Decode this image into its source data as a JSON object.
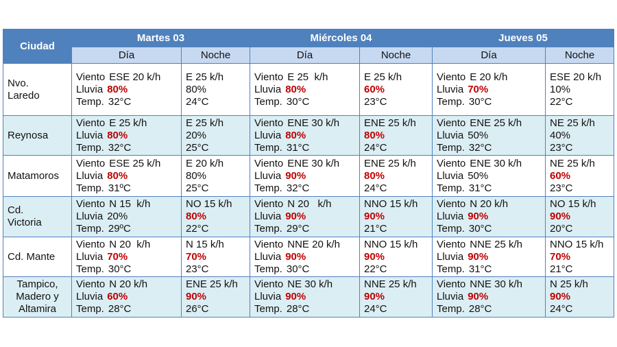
{
  "table": {
    "city_header": "Ciudad",
    "days": [
      "Martes 03",
      "Miércoles 04",
      "Jueves 05"
    ],
    "day_label": "Día",
    "night_label": "Noche",
    "day_labels": [
      "Viento",
      "Lluvia",
      "Temp."
    ],
    "rows": [
      {
        "city": [
          "Nvo.",
          "Laredo"
        ],
        "cells": [
          {
            "wind": "ESE 20 k/h",
            "rain": "80%",
            "rain_alert": true,
            "temp": "32°C"
          },
          {
            "wind": "E 25 k/h",
            "rain": "80%",
            "rain_alert": false,
            "temp": "24°C"
          },
          {
            "wind": "E 25  k/h",
            "rain": "80%",
            "rain_alert": true,
            "temp": "30°C"
          },
          {
            "wind": "E 25 k/h",
            "rain": "60%",
            "rain_alert": true,
            "temp": "23°C"
          },
          {
            "wind": "E 20 k/h",
            "rain": "70%",
            "rain_alert": true,
            "temp": "30°C"
          },
          {
            "wind": "ESE 20 k/h",
            "rain": "10%",
            "rain_alert": false,
            "temp": "22°C"
          }
        ]
      },
      {
        "city": [
          "Reynosa"
        ],
        "cells": [
          {
            "wind": "E 25 k/h",
            "rain": "80%",
            "rain_alert": true,
            "temp": "32°C"
          },
          {
            "wind": "E 25 k/h",
            "rain": "20%",
            "rain_alert": false,
            "temp": "25°C"
          },
          {
            "wind": "ENE 30 k/h",
            "rain": "80%",
            "rain_alert": true,
            "temp": "31°C"
          },
          {
            "wind": "ENE 25 k/h",
            "rain": "80%",
            "rain_alert": true,
            "temp": "24°C"
          },
          {
            "wind": "ENE 25 k/h",
            "rain": "50%",
            "rain_alert": false,
            "temp": "32°C"
          },
          {
            "wind": "NE 25 k/h",
            "rain": "40%",
            "rain_alert": false,
            "temp": "23°C"
          }
        ]
      },
      {
        "city": [
          "Matamoros"
        ],
        "cells": [
          {
            "wind": "ESE 25 k/h",
            "rain": "80%",
            "rain_alert": true,
            "temp": "31ºC"
          },
          {
            "wind": "E 20 k/h",
            "rain": "80%",
            "rain_alert": false,
            "temp": "25°C"
          },
          {
            "wind": "ENE 30 k/h",
            "rain": "90%",
            "rain_alert": true,
            "temp": "32°C"
          },
          {
            "wind": "ENE 25 k/h",
            "rain": "80%",
            "rain_alert": true,
            "temp": "24°C"
          },
          {
            "wind": "ENE 30 k/h",
            "rain": "50%",
            "rain_alert": false,
            "temp": "31°C"
          },
          {
            "wind": "NE 25 k/h",
            "rain": "60%",
            "rain_alert": true,
            "temp": "23°C"
          }
        ]
      },
      {
        "city": [
          "Cd.",
          "Victoria"
        ],
        "cells": [
          {
            "wind": "N 15  k/h",
            "rain": "20%",
            "rain_alert": false,
            "temp": "29ºC"
          },
          {
            "wind": "NO 15 k/h",
            "rain": "80%",
            "rain_alert": true,
            "temp": "22°C"
          },
          {
            "wind": "N 20   k/h",
            "rain": "90%",
            "rain_alert": true,
            "temp": "29°C"
          },
          {
            "wind": "NNO 15 k/h",
            "rain": "90%",
            "rain_alert": true,
            "temp": "21°C"
          },
          {
            "wind": "N 20 k/h",
            "rain": "90%",
            "rain_alert": true,
            "temp": "30°C"
          },
          {
            "wind": "NO 15 k/h",
            "rain": "90%",
            "rain_alert": true,
            "temp": "20°C"
          }
        ]
      },
      {
        "city": [
          "Cd. Mante"
        ],
        "cells": [
          {
            "wind": "N 20  k/h",
            "rain": "70%",
            "rain_alert": true,
            "temp": "30°C"
          },
          {
            "wind": "N 15 k/h",
            "rain": "70%",
            "rain_alert": true,
            "temp": "23°C"
          },
          {
            "wind": "NNE 20 k/h",
            "rain": "90%",
            "rain_alert": true,
            "temp": "30°C"
          },
          {
            "wind": "NNO 15 k/h",
            "rain": "90%",
            "rain_alert": true,
            "temp": "22°C"
          },
          {
            "wind": "NNE 25 k/h",
            "rain": "90%",
            "rain_alert": true,
            "temp": "31°C"
          },
          {
            "wind": "NNO 15 k/h",
            "rain": "70%",
            "rain_alert": true,
            "temp": "21°C"
          }
        ]
      },
      {
        "city": [
          "Tampico,",
          "Madero y",
          "Altamira"
        ],
        "cells": [
          {
            "wind": "N 20 k/h",
            "rain": "60%",
            "rain_alert": true,
            "temp": "28°C"
          },
          {
            "wind": "ENE 25 k/h",
            "rain": "90%",
            "rain_alert": true,
            "temp": "26°C"
          },
          {
            "wind": "NE 30 k/h",
            "rain": "90%",
            "rain_alert": true,
            "temp": "28°C"
          },
          {
            "wind": "NNE 25 k/h",
            "rain": "90%",
            "rain_alert": true,
            "temp": "24°C"
          },
          {
            "wind": "NNE 30 k/h",
            "rain": "90%",
            "rain_alert": true,
            "temp": "28°C"
          },
          {
            "wind": "N 25 k/h",
            "rain": "90%",
            "rain_alert": true,
            "temp": "24°C"
          }
        ]
      }
    ]
  }
}
